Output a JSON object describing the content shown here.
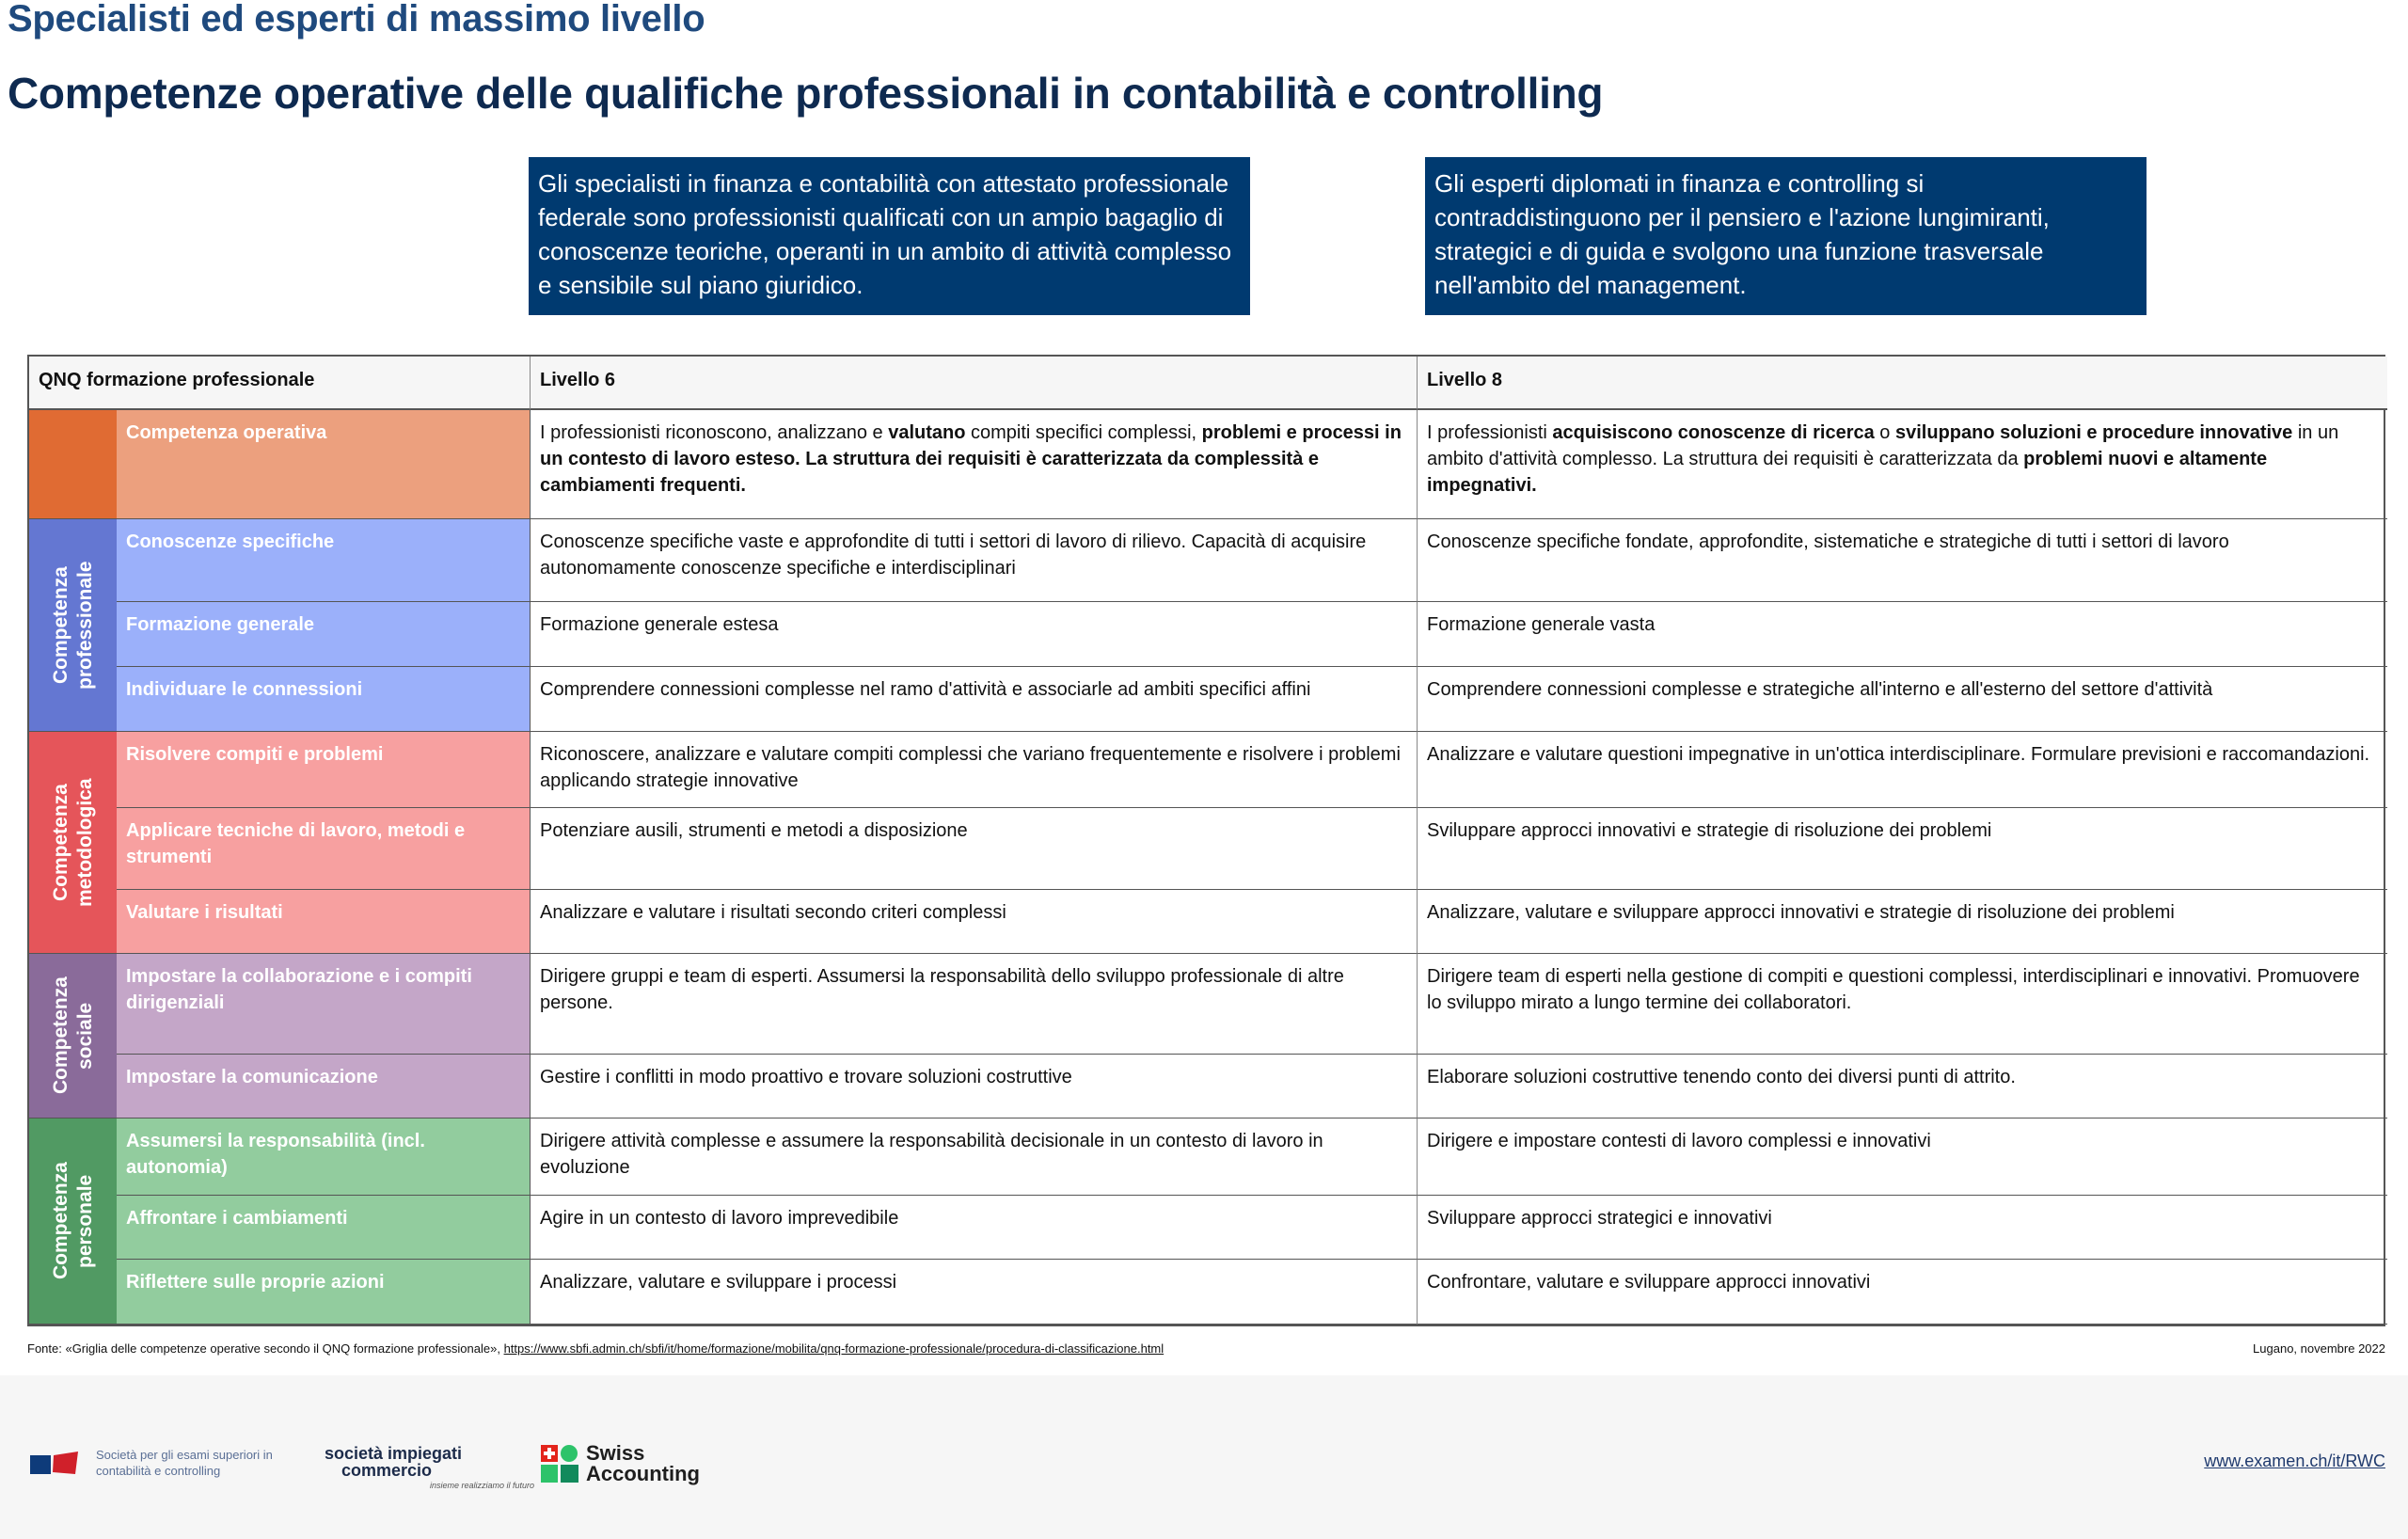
{
  "header": {
    "subtitle": "Specialisti ed esperti di massimo livello",
    "title": "Competenze operative delle qualifiche professionali in contabilità e controlling"
  },
  "intro_boxes": [
    "Gli specialisti in finanza e contabilità con attestato professionale federale sono professionisti qualificati con un ampio bagaglio di conoscenze teoriche, operanti in un ambito di attività complesso e sensibile sul piano giuridico.",
    "Gli esperti diplomati in finanza e controlling si contraddistinguono per il pensiero e l'azione lungimiranti, strategici e di guida e svolgono una funzione trasversale nell'ambito del management."
  ],
  "table": {
    "headers": [
      "QNQ formazione professionale",
      "Livello 6",
      "Livello 8"
    ],
    "groups": [
      {
        "label": "",
        "dark": "#E06B33",
        "light": "#ECA07E",
        "rows": 1
      },
      {
        "label": "Competenza professionale",
        "dark": "#6477D2",
        "light": "#9BB0FA",
        "rows": 3
      },
      {
        "label": "Competenza metodologica",
        "dark": "#E5555A",
        "light": "#F7A0A0",
        "rows": 3
      },
      {
        "label": "Competenza sociale",
        "dark": "#8A6B9A",
        "light": "#C4A6C8",
        "rows": 2
      },
      {
        "label": "Competenza personale",
        "dark": "#519A63",
        "light": "#92CC9E",
        "rows": 3
      }
    ],
    "rows": [
      {
        "label": "Competenza operativa",
        "l6": [
          {
            "t": "I professionisti riconoscono, analizzano e "
          },
          {
            "t": "valutano",
            "b": true
          },
          {
            "t": " compiti specifici complessi, "
          },
          {
            "t": "problemi e processi in un contesto di lavoro esteso. La struttura dei requisiti è caratterizzata da complessità e cambiamenti frequenti.",
            "b": true
          }
        ],
        "l8": [
          {
            "t": "I professionisti "
          },
          {
            "t": "acquisiscono conoscenze di ricerca",
            "b": true
          },
          {
            "t": " o "
          },
          {
            "t": "sviluppano soluzioni e procedure innovative",
            "b": true
          },
          {
            "t": " in un ambito d'attività complesso. La struttura dei requisiti è caratterizzata da "
          },
          {
            "t": "problemi nuovi e altamente impegnativi.",
            "b": true
          }
        ]
      },
      {
        "label": "Conoscenze specifiche",
        "l6": [
          {
            "t": "Conoscenze specifiche vaste e approfondite di tutti i settori di lavoro di rilievo. Capacità di acquisire autonomamente conoscenze specifiche e interdisciplinari"
          }
        ],
        "l8": [
          {
            "t": "Conoscenze specifiche fondate, approfondite, sistematiche e strategiche di tutti i settori di lavoro"
          }
        ]
      },
      {
        "label": "Formazione generale",
        "l6": [
          {
            "t": "Formazione generale estesa"
          }
        ],
        "l8": [
          {
            "t": "Formazione generale vasta"
          }
        ]
      },
      {
        "label": "Individuare le connessioni",
        "l6": [
          {
            "t": "Comprendere connessioni complesse nel ramo d'attività e associarle ad ambiti specifici affini"
          }
        ],
        "l8": [
          {
            "t": "Comprendere connessioni complesse e strategiche all'interno e all'esterno del settore d'attività"
          }
        ]
      },
      {
        "label": "Risolvere compiti e problemi",
        "l6": [
          {
            "t": "Riconoscere, analizzare e valutare compiti complessi che variano frequentemente e risolvere i problemi applicando strategie innovative"
          }
        ],
        "l8": [
          {
            "t": "Analizzare e valutare questioni impegnative in un'ottica interdisciplinare. Formulare previsioni e raccomandazioni."
          }
        ]
      },
      {
        "label": "Applicare tecniche di lavoro, metodi e strumenti",
        "l6": [
          {
            "t": "Potenziare ausili, strumenti e metodi a disposizione"
          }
        ],
        "l8": [
          {
            "t": "Sviluppare approcci innovativi e strategie di risoluzione dei problemi"
          }
        ]
      },
      {
        "label": "Valutare i risultati",
        "l6": [
          {
            "t": "Analizzare e valutare i risultati secondo criteri complessi"
          }
        ],
        "l8": [
          {
            "t": "Analizzare, valutare e sviluppare approcci innovativi e strategie di risoluzione dei problemi"
          }
        ]
      },
      {
        "label": "Impostare la collaborazione e i compiti dirigenziali",
        "l6": [
          {
            "t": "Dirigere gruppi e team di esperti. Assumersi la responsabilità dello sviluppo professionale di altre persone."
          }
        ],
        "l8": [
          {
            "t": "Dirigere team di esperti nella gestione di compiti e questioni complessi, interdisciplinari e innovativi. Promuovere lo sviluppo mirato a lungo termine dei collaboratori."
          }
        ]
      },
      {
        "label": "Impostare la comunicazione",
        "l6": [
          {
            "t": "Gestire i conflitti in modo proattivo e trovare soluzioni costruttive"
          }
        ],
        "l8": [
          {
            "t": "Elaborare soluzioni costruttive tenendo conto dei diversi punti di attrito."
          }
        ]
      },
      {
        "label": "Assumersi la responsabilità (incl. autonomia)",
        "l6": [
          {
            "t": "Dirigere attività complesse e assumere la responsabilità decisionale in un contesto di lavoro in evoluzione"
          }
        ],
        "l8": [
          {
            "t": "Dirigere e impostare contesti di lavoro complessi e innovativi"
          }
        ]
      },
      {
        "label": "Affrontare i cambiamenti",
        "l6": [
          {
            "t": "Agire in un contesto di lavoro imprevedibile"
          }
        ],
        "l8": [
          {
            "t": "Sviluppare approcci strategici e innovativi"
          }
        ]
      },
      {
        "label": "Riflettere sulle proprie azioni",
        "l6": [
          {
            "t": "Analizzare, valutare e sviluppare i processi"
          }
        ],
        "l8": [
          {
            "t": "Confrontare, valutare e sviluppare approcci innovativi"
          }
        ]
      }
    ]
  },
  "source": {
    "prefix": "Fonte: «Griglia delle competenze operative secondo il QNQ formazione professionale», ",
    "link": "https://www.sbfi.admin.ch/sbfi/it/home/formazione/mobilita/qnq-formazione-professionale/procedura-di-classificazione.html",
    "date": "Lugano, novembre 2022"
  },
  "footer": {
    "logo1_text": "Società per gli esami superiori in contabilità e controlling",
    "logo2_line1": "società impiegati",
    "logo2_line2": "commercio",
    "logo2_tagline": "insieme realizziamo il futuro",
    "logo3_line1": "Swiss",
    "logo3_line2": "Accounting",
    "url": "www.examen.ch/it/RWC"
  }
}
